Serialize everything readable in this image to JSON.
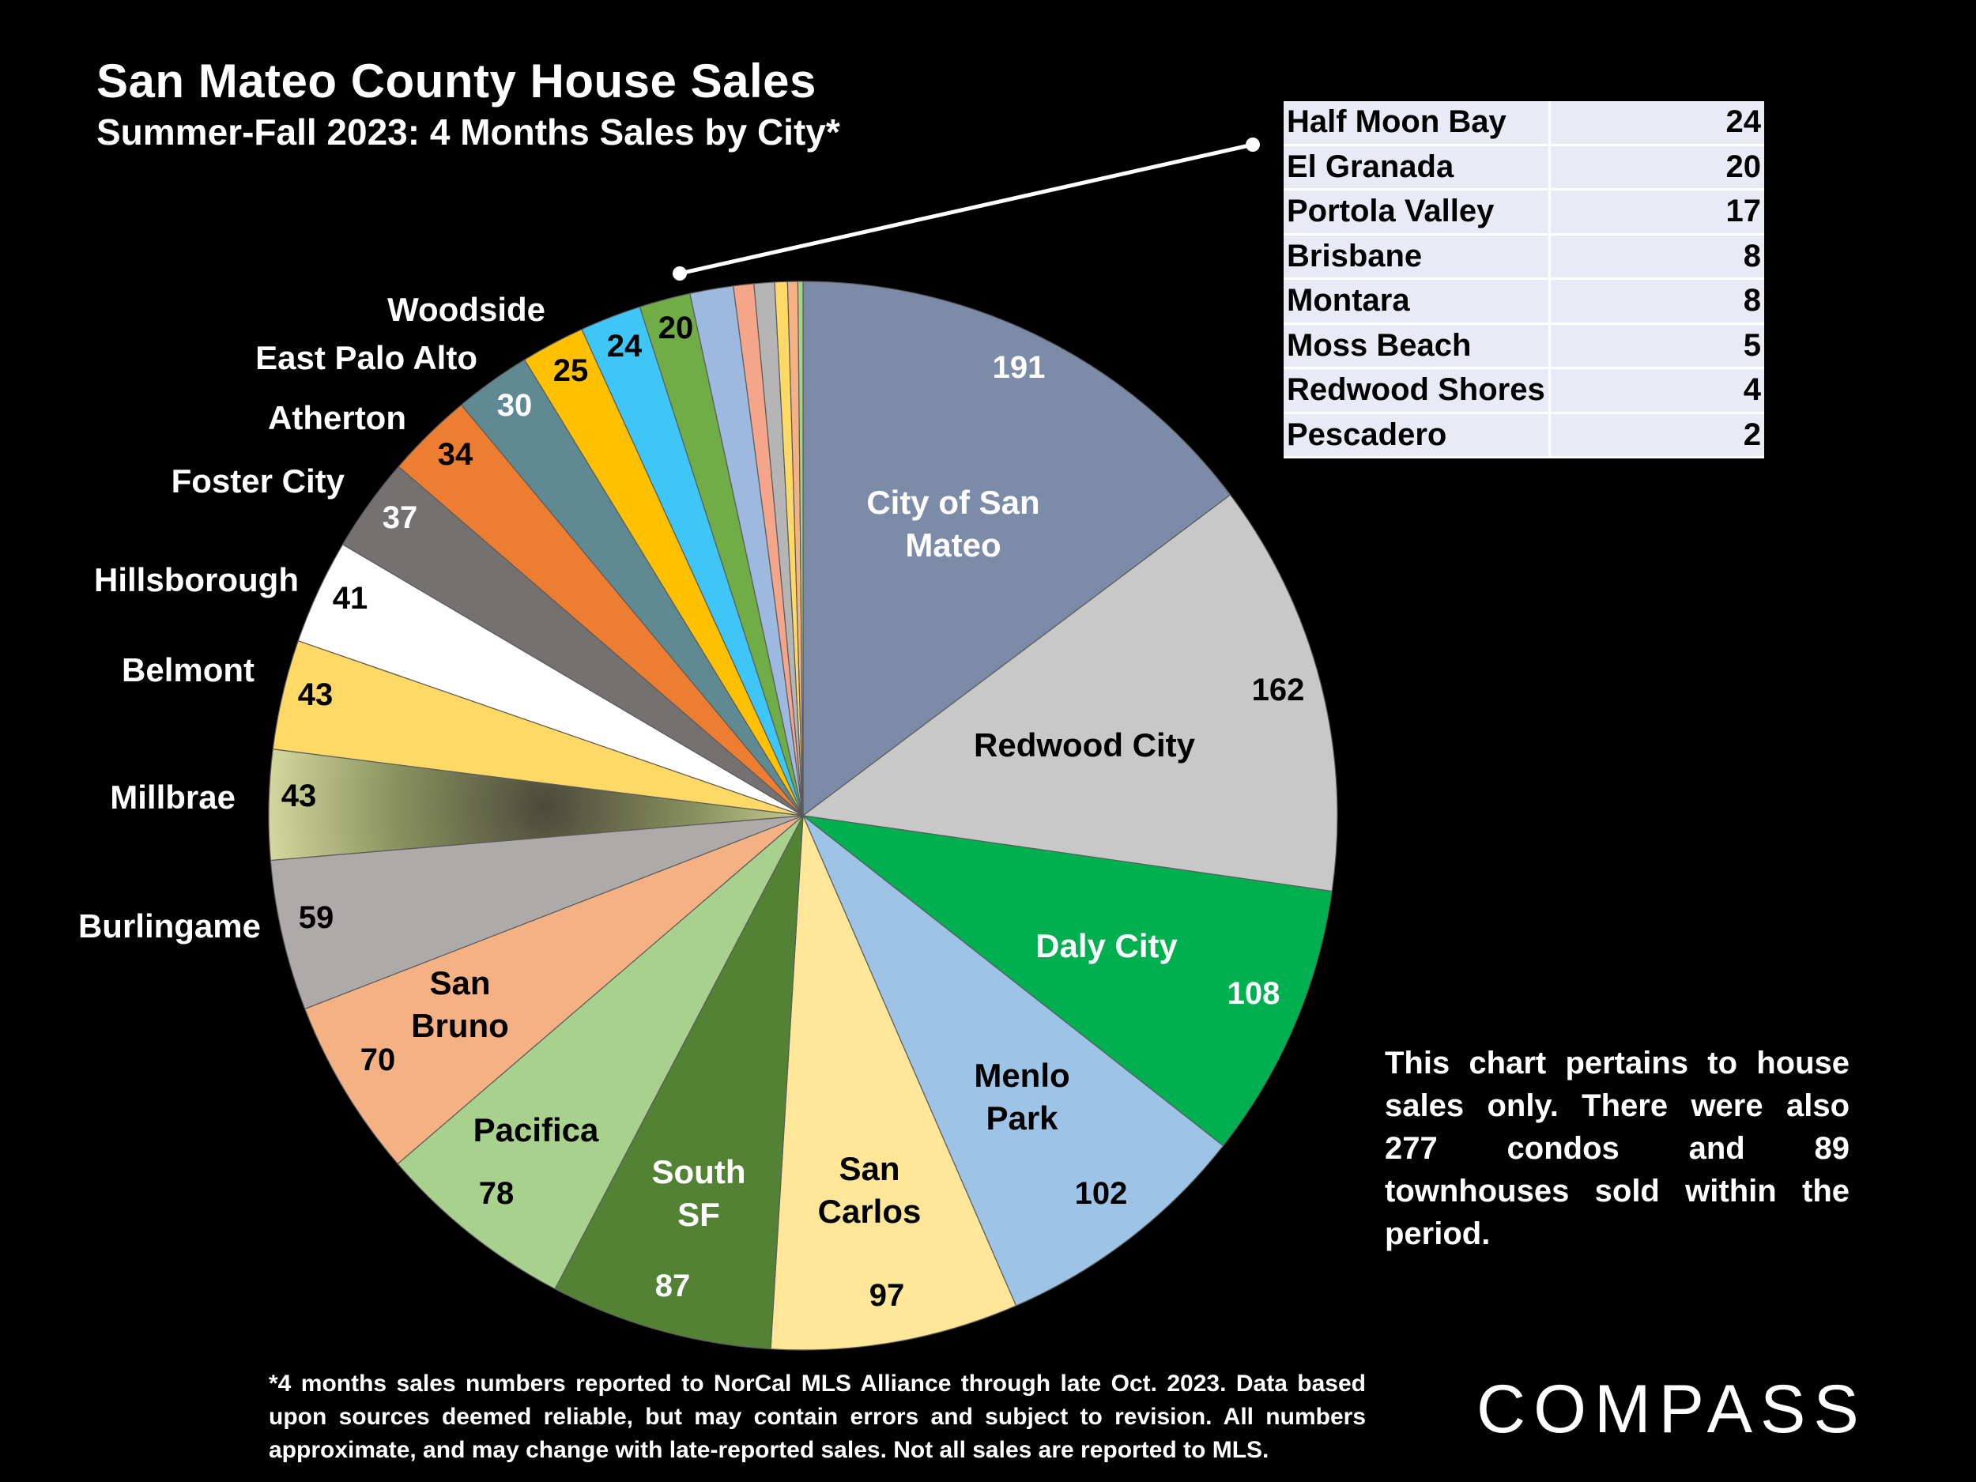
{
  "title": "San Mateo County House Sales",
  "subtitle": "Summer-Fall 2023: 4 Months Sales by City*",
  "chart_data": {
    "type": "pie",
    "start": "top, clockwise",
    "slices": [
      {
        "label": "City of San Mateo",
        "label_lines": [
          "City of San",
          "Mateo"
        ],
        "value": 191,
        "color": "#7b8ba8"
      },
      {
        "label": "Redwood City",
        "label_lines": [
          "Redwood City"
        ],
        "value": 162,
        "color": "#c8c8c8"
      },
      {
        "label": "Daly City",
        "label_lines": [
          "Daly City"
        ],
        "value": 108,
        "color": "#00b050"
      },
      {
        "label": "Menlo Park",
        "label_lines": [
          "Menlo",
          "Park"
        ],
        "value": 102,
        "color": "#9dc3e6"
      },
      {
        "label": "San Carlos",
        "label_lines": [
          "San",
          "Carlos"
        ],
        "value": 97,
        "color": "#ffe699"
      },
      {
        "label": "South SF",
        "label_lines": [
          "South",
          "SF"
        ],
        "value": 87,
        "color": "#548235"
      },
      {
        "label": "Pacifica",
        "label_lines": [
          "Pacifica"
        ],
        "value": 78,
        "color": "#a9d18e"
      },
      {
        "label": "San Bruno",
        "label_lines": [
          "San",
          "Bruno"
        ],
        "value": 70,
        "color": "#f4b183"
      },
      {
        "label": "Burlingame",
        "label_lines": [
          "Burlingame"
        ],
        "value": 59,
        "color": "#aeaaaa"
      },
      {
        "label": "Millbrae",
        "label_lines": [
          "Millbrae"
        ],
        "value": 43,
        "color": "#b5bd7e"
      },
      {
        "label": "Belmont",
        "label_lines": [
          "Belmont"
        ],
        "value": 43,
        "color": "#ffd966"
      },
      {
        "label": "Hillsborough",
        "label_lines": [
          "Hillsborough"
        ],
        "value": 41,
        "color": "#ffffff"
      },
      {
        "label": "Foster City",
        "label_lines": [
          "Foster City"
        ],
        "value": 37,
        "color": "#767171"
      },
      {
        "label": "Atherton",
        "label_lines": [
          "Atherton"
        ],
        "value": 34,
        "color": "#ed7d31"
      },
      {
        "label": "East Palo Alto",
        "label_lines": [
          "East Palo Alto"
        ],
        "value": 30,
        "color": "#5f8a93"
      },
      {
        "label": "Woodside",
        "label_lines": [
          "Woodside"
        ],
        "value": 25,
        "color": "#ffc000"
      },
      {
        "label": "Half Moon Bay",
        "value": 24,
        "color": "#3ec6f7"
      },
      {
        "label": "El Granada",
        "value": 20,
        "color": "#70ad47"
      },
      {
        "label": "Portola Valley",
        "value": 17,
        "color": "#9eb9e0"
      },
      {
        "label": "Brisbane",
        "value": 8,
        "color": "#f4a58a"
      },
      {
        "label": "Montara",
        "value": 8,
        "color": "#b5b5b5"
      },
      {
        "label": "Moss Beach",
        "value": 5,
        "color": "#ffd966"
      },
      {
        "label": "Redwood Shores",
        "value": 4,
        "color": "#f4b183"
      },
      {
        "label": "Pescadero",
        "value": 2,
        "color": "#a9d18e"
      }
    ]
  },
  "small_cities_table": [
    {
      "name": "Half Moon Bay",
      "value": "24"
    },
    {
      "name": "El Granada",
      "value": "20"
    },
    {
      "name": "Portola Valley",
      "value": "17"
    },
    {
      "name": "Brisbane",
      "value": "8"
    },
    {
      "name": "Montara",
      "value": "8"
    },
    {
      "name": "Moss Beach",
      "value": "5"
    },
    {
      "name": "Redwood Shores",
      "value": "4"
    },
    {
      "name": "Pescadero",
      "value": "2"
    }
  ],
  "note": "This chart pertains to house sales only. There were also 277 condos and 89 townhouses sold within the period.",
  "footnote": "*4 months sales numbers reported to NorCal MLS Alliance through late Oct. 2023. Data based upon sources deemed reliable, but may contain errors and subject to revision. All numbers approximate, and may change with late-reported sales. Not all sales are reported to MLS.",
  "logo_text": "COMPASS"
}
